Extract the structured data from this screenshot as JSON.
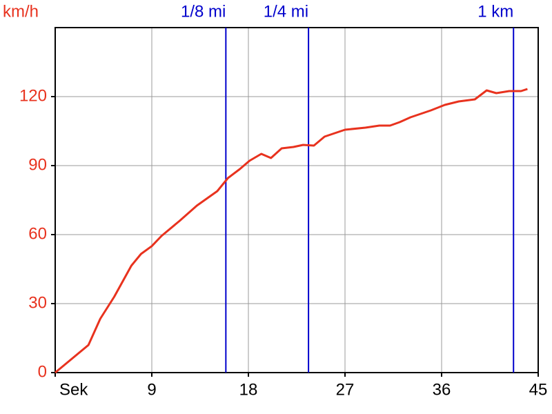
{
  "chart_data": {
    "type": "line",
    "y_label": "km/h",
    "x": [
      0,
      3.1,
      4.2,
      5.5,
      7.1,
      8.0,
      9.0,
      9.9,
      11.6,
      13.2,
      15.1,
      16.1,
      17.2,
      18.1,
      19.2,
      20.1,
      21.1,
      22.2,
      23.1,
      24.1,
      25.1,
      27.0,
      28.9,
      30.2,
      31.2,
      32.1,
      33.1,
      35.0,
      36.3,
      37.6,
      39.1,
      40.2,
      41.1,
      42.3,
      43.4,
      44.0
    ],
    "values": [
      0,
      12,
      23.4,
      33,
      46.5,
      51.6,
      55,
      59.4,
      66,
      72.6,
      78.9,
      84.6,
      88.5,
      92.1,
      95.1,
      93.3,
      97.5,
      98.1,
      99,
      98.7,
      102.6,
      105.6,
      106.5,
      107.4,
      107.4,
      108.9,
      111,
      114,
      116.4,
      117.9,
      118.8,
      122.7,
      121.5,
      122.4,
      122.4,
      123.3
    ],
    "color": "#e8321e",
    "xlim": [
      0,
      45
    ],
    "xticks": [
      {
        "value": 0,
        "label": "Sek"
      },
      9,
      18,
      27,
      36,
      45
    ],
    "ylim": [
      0,
      150
    ],
    "yticks": [
      0,
      30,
      60,
      90,
      120
    ],
    "grid": true,
    "markers": [
      {
        "label": "1/8 mi",
        "x": 15.9
      },
      {
        "label": "1/4 mi",
        "x": 23.6
      },
      {
        "label": "1 km",
        "x": 42.7
      }
    ],
    "marker_color": "#0000cc"
  }
}
